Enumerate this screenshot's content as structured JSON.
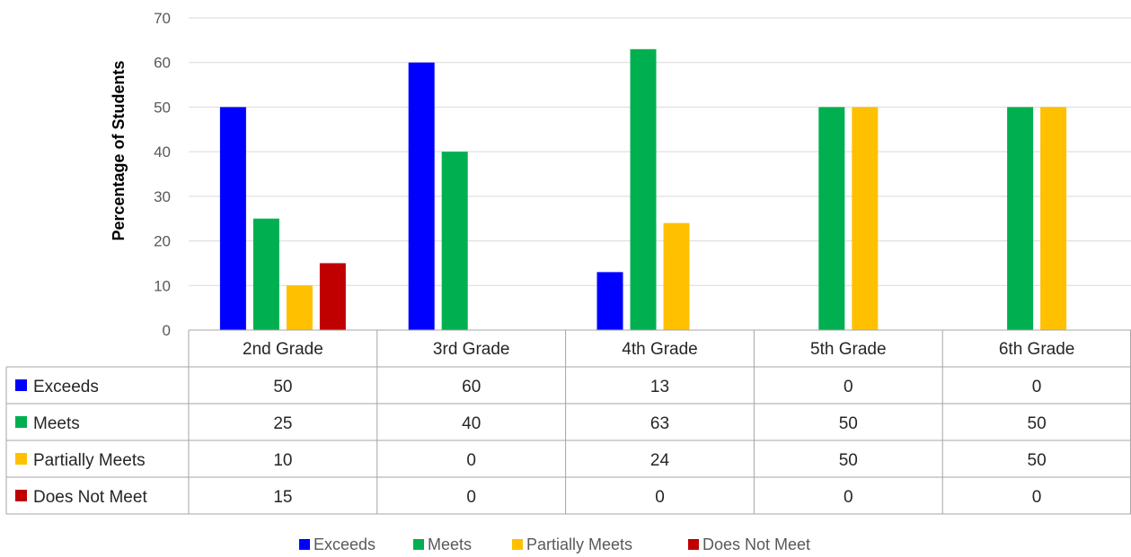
{
  "chart_data": {
    "type": "bar",
    "title": "",
    "xlabel": "",
    "ylabel": "Percentage of Students",
    "ylim": [
      0,
      70
    ],
    "yticks": [
      0,
      10,
      20,
      30,
      40,
      50,
      60,
      70
    ],
    "grid": true,
    "legend_position": "bottom",
    "categories": [
      "2nd Grade",
      "3rd Grade",
      "4th Grade",
      "5th Grade",
      "6th Grade"
    ],
    "series": [
      {
        "name": "Exceeds",
        "color": "#0000ff",
        "values": [
          50,
          60,
          13,
          0,
          0
        ]
      },
      {
        "name": "Meets",
        "color": "#00b050",
        "values": [
          25,
          40,
          63,
          50,
          50
        ]
      },
      {
        "name": "Partially Meets",
        "color": "#ffc000",
        "values": [
          10,
          0,
          24,
          50,
          50
        ]
      },
      {
        "name": "Does Not Meet",
        "color": "#c00000",
        "values": [
          15,
          0,
          0,
          0,
          0
        ]
      }
    ],
    "data_table": true
  }
}
